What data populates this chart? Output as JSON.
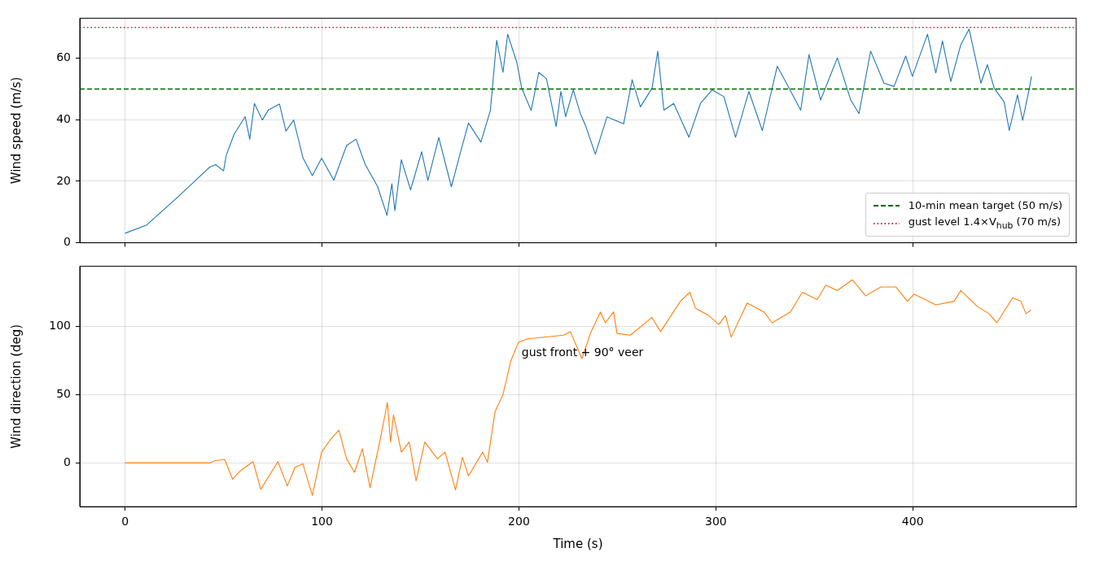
{
  "chart_data": [
    {
      "type": "line",
      "ylabel": "Wind speed (m/s)",
      "xlim": [
        -23,
        483
      ],
      "xticks": [
        0,
        100,
        200,
        300,
        400
      ],
      "ylim": [
        0,
        73
      ],
      "yticks": [
        0,
        20,
        40,
        60
      ],
      "grid": true,
      "tick_labels": "y",
      "legend": "lower right",
      "marker": "none",
      "line_style": "solid",
      "series": [
        {
          "color": "#1f77b4",
          "x": [
            0,
            11,
            27,
            43,
            46,
            50,
            51.4,
            55.4,
            61,
            63.3,
            65.7,
            69.7,
            72.8,
            78.4,
            81.7,
            85.6,
            90.4,
            95.1,
            99.8,
            106,
            112.5,
            117.3,
            122,
            128.3,
            133,
            135.5,
            137,
            140.3,
            145,
            150.6,
            153.8,
            159.3,
            165.7,
            170.4,
            174.4,
            180.7,
            185.5,
            188.7,
            191.9,
            194.3,
            199,
            201.4,
            206.2,
            210.1,
            214,
            218.9,
            221.3,
            223.7,
            227.6,
            231.2,
            234,
            238.8,
            244.7,
            253.2,
            257.5,
            261.7,
            267.6,
            270.5,
            273.6,
            278.6,
            286.3,
            292.2,
            298.1,
            304.1,
            310,
            316.8,
            323.6,
            331.2,
            335.4,
            343.1,
            347.3,
            353.2,
            361.7,
            368.5,
            372.7,
            378.6,
            385.4,
            390.5,
            396.4,
            399.8,
            407.5,
            411.7,
            415.1,
            419.3,
            424.4,
            428.6,
            434.6,
            437.9,
            441.4,
            446.4,
            449,
            453.2,
            455.8,
            459.2,
            460.3
          ],
          "values": [
            3.1,
            5.8,
            15,
            24.6,
            25.4,
            23.4,
            28.5,
            35.3,
            41,
            33.7,
            45.3,
            39.9,
            43.2,
            45.1,
            36.3,
            39.9,
            27.5,
            21.8,
            27.5,
            20.3,
            31.6,
            33.7,
            25.4,
            18.2,
            8.9,
            19.2,
            10.4,
            27,
            17.2,
            29.6,
            20.3,
            34.2,
            18.2,
            29.6,
            38.9,
            32.7,
            43,
            65.8,
            55.4,
            67.8,
            58.5,
            50.3,
            43,
            55.4,
            53.3,
            37.8,
            49.2,
            41,
            49.7,
            42,
            37.8,
            28.8,
            40.9,
            38.7,
            53,
            44.2,
            50.2,
            62.3,
            43.1,
            45.3,
            34.3,
            45.3,
            49.7,
            47.5,
            34.3,
            49.2,
            36.5,
            57.4,
            52.4,
            43.1,
            61.2,
            46.4,
            60.1,
            46.4,
            42,
            62.3,
            51.9,
            50.8,
            60.7,
            54.1,
            67.8,
            55.2,
            65.6,
            52.4,
            64.4,
            69.5,
            51.9,
            57.9,
            50.2,
            45.8,
            36.5,
            48.1,
            39.8,
            50.2,
            54.1
          ]
        }
      ],
      "ref_lines": [
        {
          "axis": "y",
          "value": 50,
          "label": "10-min mean target (50 m/s)",
          "color": "#006400",
          "line_style": "dashed"
        },
        {
          "axis": "y",
          "value": 70,
          "label": "gust level 1.4×V$_{hub}$ (70 m/s)",
          "color": "#dc143c",
          "line_style": "dotted"
        }
      ]
    },
    {
      "type": "line",
      "xlabel": "Time (s)",
      "ylabel": "Wind direction (deg)",
      "xlim": [
        -23,
        483
      ],
      "xticks": [
        0,
        100,
        200,
        300,
        400
      ],
      "ylim": [
        -32,
        144
      ],
      "yticks": [
        0,
        50,
        100
      ],
      "grid": true,
      "marker": "none",
      "line_style": "solid",
      "series": [
        {
          "color": "#ff7f0e",
          "x": [
            0,
            42.7,
            45.9,
            50.6,
            54.6,
            58.6,
            65,
            68.9,
            77.6,
            82.4,
            86.3,
            90.3,
            95.1,
            99.8,
            104.6,
            108.6,
            112.5,
            116.5,
            120.5,
            124.4,
            130,
            133.2,
            134.8,
            136.3,
            140.3,
            144.3,
            147.8,
            152.2,
            158.6,
            162.5,
            167.8,
            171.3,
            174.4,
            181.6,
            184,
            187.9,
            191.9,
            195.9,
            199.8,
            204.6,
            222.7,
            226.1,
            232,
            236.3,
            241.4,
            243.9,
            248.1,
            249.8,
            256.6,
            267.6,
            271.9,
            282,
            286.8,
            289.7,
            296.4,
            301.5,
            304.9,
            307.8,
            315.9,
            324.4,
            328.6,
            337.9,
            343.9,
            351.5,
            355.8,
            361.7,
            369.3,
            376.1,
            383.7,
            391.4,
            397.3,
            400.7,
            411.7,
            421,
            424.4,
            432.9,
            438.8,
            442.7,
            450.7,
            454.9,
            457.5,
            460
          ],
          "values": [
            0,
            0,
            1.7,
            2.5,
            -11.9,
            -5.7,
            1,
            -19.3,
            1,
            -16.8,
            -3.2,
            -0.7,
            -23.8,
            7.9,
            17.8,
            24,
            3,
            -6.9,
            10.4,
            -18.1,
            20.3,
            44.3,
            15.3,
            35.1,
            7.9,
            15.3,
            -13.1,
            15.3,
            3,
            7.9,
            -19.8,
            4.2,
            -9.4,
            7.9,
            0.5,
            37.6,
            50,
            74.8,
            88.4,
            90.8,
            93.5,
            96.1,
            76.4,
            94.8,
            110.5,
            102.6,
            110.5,
            94.8,
            93.5,
            106.5,
            96.1,
            118.3,
            124.9,
            113.1,
            107.9,
            101.3,
            107.9,
            92.1,
            117,
            110.5,
            102.6,
            110.5,
            124.9,
            119.6,
            130.1,
            126.2,
            134,
            122.3,
            128.8,
            128.8,
            118.3,
            123.6,
            115.7,
            118.3,
            126.2,
            114.4,
            109.2,
            102.6,
            120.9,
            118.3,
            109.2,
            111.8
          ]
        }
      ],
      "annotations": [
        "gust front + 90° veer"
      ]
    }
  ]
}
